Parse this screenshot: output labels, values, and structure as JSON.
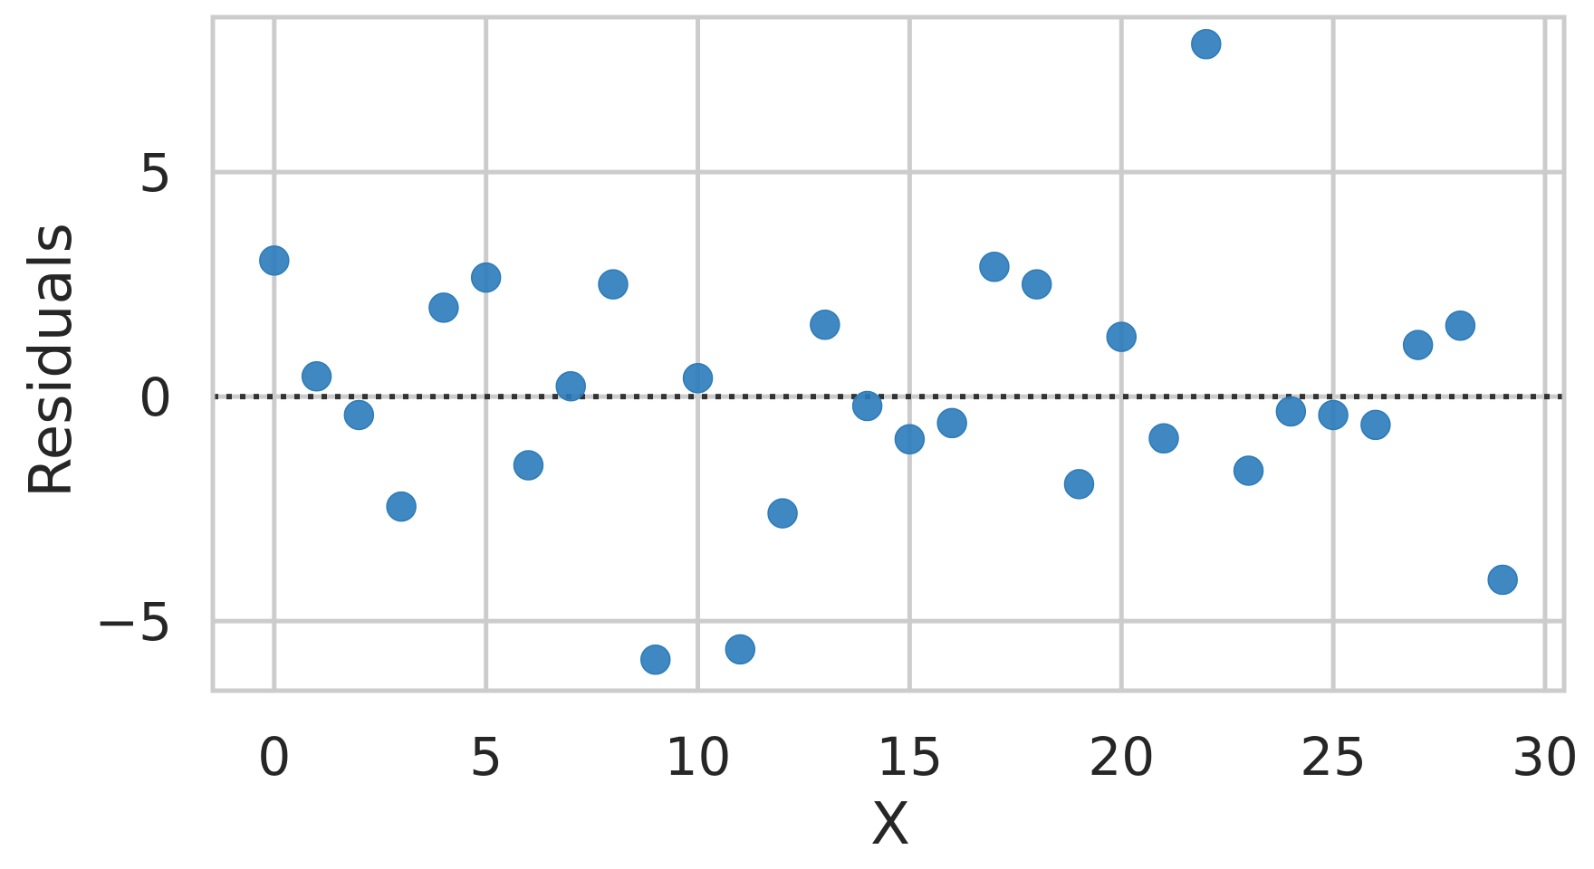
{
  "chart_data": {
    "type": "scatter",
    "xlabel": "X",
    "ylabel": "Residuals",
    "xlim": [
      -1.45,
      30.45
    ],
    "ylim": [
      -6.55,
      8.45
    ],
    "xticks": [
      0,
      5,
      10,
      15,
      20,
      25,
      30
    ],
    "yticks": [
      -5,
      0,
      5
    ],
    "xtick_labels": [
      "0",
      "5",
      "10",
      "15",
      "20",
      "25",
      "30"
    ],
    "ytick_labels": [
      "−5",
      "0",
      "5"
    ],
    "grid": true,
    "reference_line": {
      "y": 0,
      "style": "dotted"
    },
    "point_color": "#2b7bba",
    "series": [
      {
        "x": [
          0,
          1,
          2,
          3,
          4,
          5,
          6,
          7,
          8,
          9,
          10,
          11,
          12,
          13,
          14,
          15,
          16,
          17,
          18,
          19,
          20,
          21,
          22,
          23,
          24,
          25,
          26,
          27,
          28,
          29
        ],
        "y": [
          3.03,
          0.45,
          -0.41,
          -2.45,
          1.98,
          2.65,
          -1.53,
          0.23,
          2.5,
          -5.86,
          0.41,
          -5.63,
          -2.6,
          1.6,
          -0.21,
          -0.95,
          -0.59,
          2.89,
          2.5,
          -1.95,
          1.33,
          -0.93,
          7.85,
          -1.65,
          -0.33,
          -0.41,
          -0.63,
          1.15,
          1.58,
          -4.08
        ]
      }
    ]
  }
}
